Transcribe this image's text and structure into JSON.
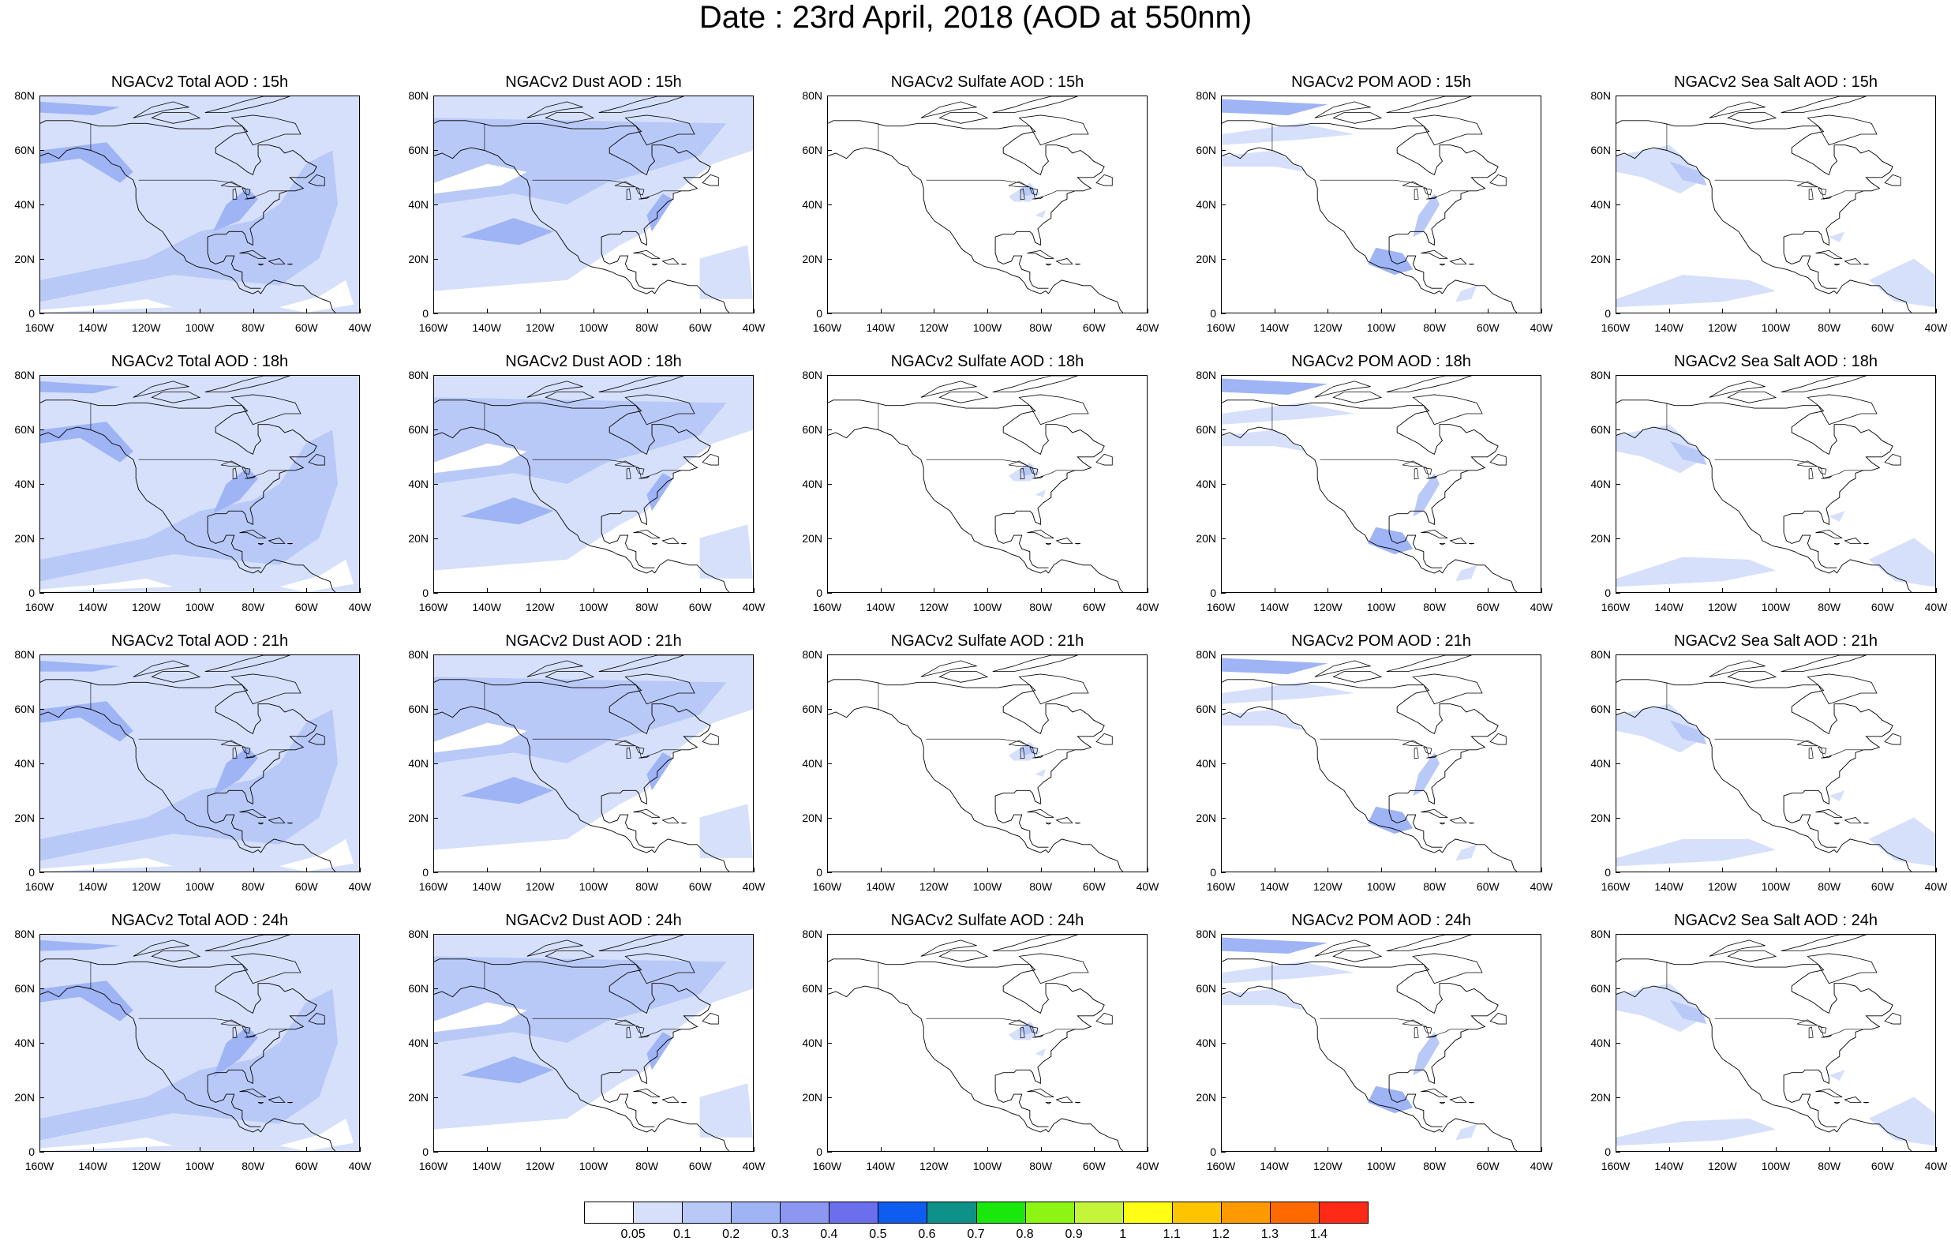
{
  "figure": {
    "title": "Date : 23rd April, 2018 (AOD at 550nm)"
  },
  "panel_titles": [
    [
      "NGACv2 Total AOD : 15h",
      "NGACv2 Dust AOD : 15h",
      "NGACv2 Sulfate AOD : 15h",
      "NGACv2 POM AOD : 15h",
      "NGACv2 Sea Salt AOD : 15h"
    ],
    [
      "NGACv2 Total AOD : 18h",
      "NGACv2 Dust AOD : 18h",
      "NGACv2 Sulfate AOD : 18h",
      "NGACv2 POM AOD : 18h",
      "NGACv2 Sea Salt AOD : 18h"
    ],
    [
      "NGACv2 Total AOD : 21h",
      "NGACv2 Dust AOD : 21h",
      "NGACv2 Sulfate AOD : 21h",
      "NGACv2 POM AOD : 21h",
      "NGACv2 Sea Salt AOD : 21h"
    ],
    [
      "NGACv2 Total AOD : 24h",
      "NGACv2 Dust AOD : 24h",
      "NGACv2 Sulfate AOD : 24h",
      "NGACv2 POM AOD : 24h",
      "NGACv2 Sea Salt  AOD : 24h"
    ]
  ],
  "axes": {
    "lat_labels": [
      "80N",
      "60N",
      "40N",
      "20N",
      "0"
    ],
    "lon_labels": [
      "160W",
      "140W",
      "120W",
      "100W",
      "80W",
      "60W",
      "40W"
    ]
  },
  "map_region": {
    "lon_range": [
      -160,
      -40
    ],
    "lat_range": [
      0,
      80
    ]
  },
  "colorbar": {
    "labels": [
      "0.05",
      "0.1",
      "0.2",
      "0.3",
      "0.4",
      "0.5",
      "0.6",
      "0.7",
      "0.8",
      "0.9",
      "1",
      "1.1",
      "1.2",
      "1.3",
      "1.4"
    ],
    "colors": [
      "#ffffff",
      "#d6e0fb",
      "#b9c9f7",
      "#9fb4f5",
      "#8c97f2",
      "#6b6fee",
      "#0e5df0",
      "#0d9189",
      "#1ae80d",
      "#8cf513",
      "#c4f53a",
      "#fffc16",
      "#ffc400",
      "#ff9900",
      "#ff6a00",
      "#ff2a15"
    ]
  },
  "fill_colors": {
    "low": "#d6e0fb",
    "mid": "#b9c9f7",
    "high": "#9fb4f5",
    "peak": "#8c97f2"
  }
}
